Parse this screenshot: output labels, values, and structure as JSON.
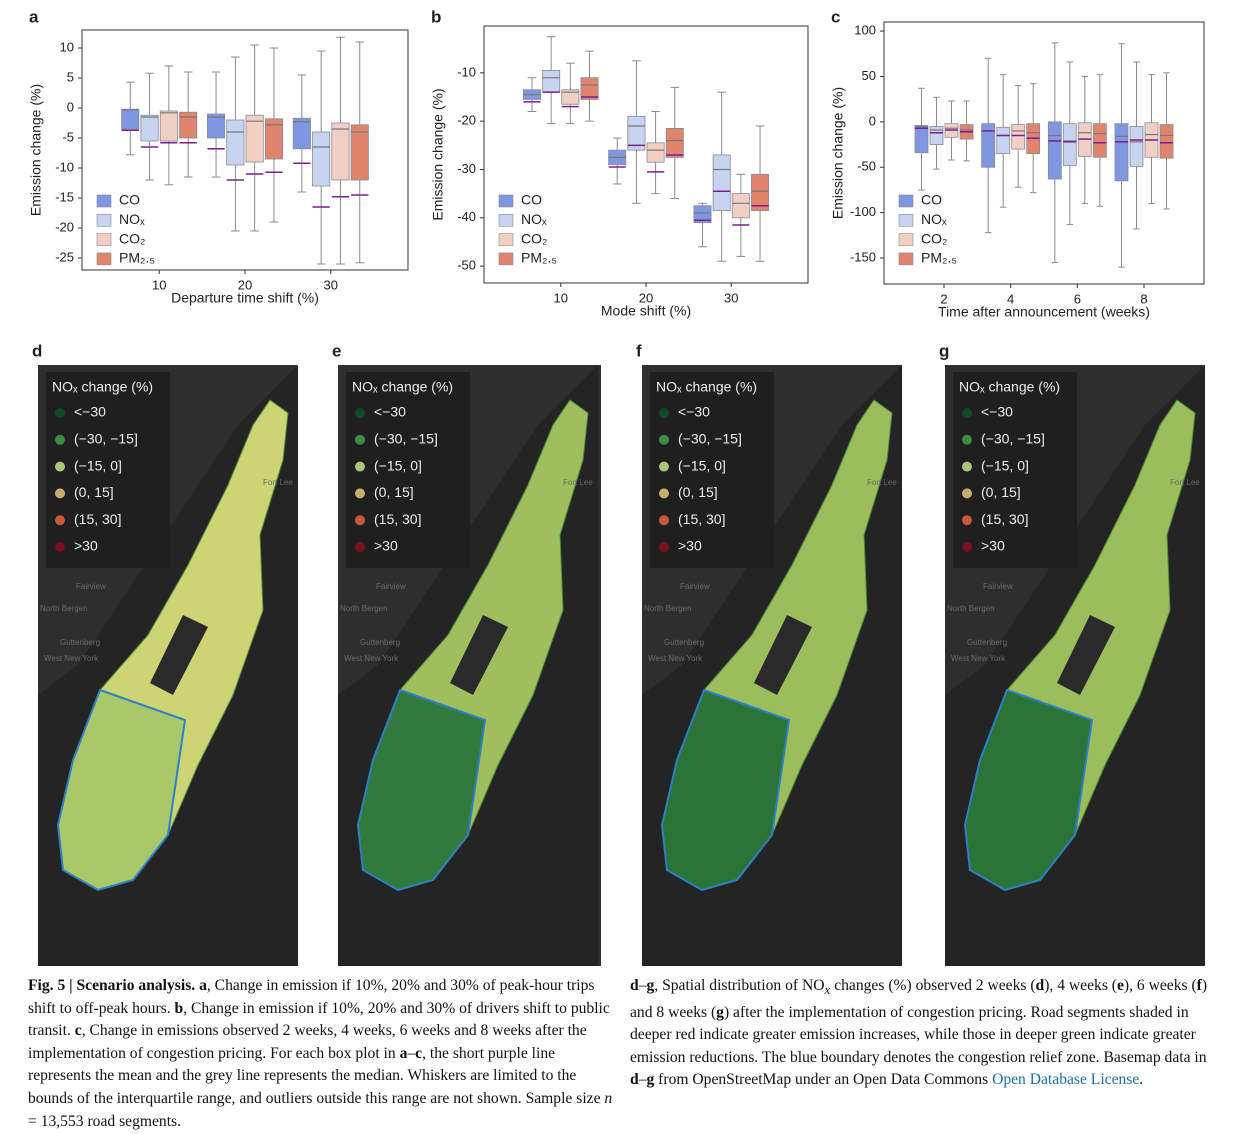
{
  "chart_data": [
    {
      "type": "box",
      "panel_label": "a",
      "ylabel": "Emission change (%)",
      "xlabel": "Departure time shift (%)",
      "categories": [
        "10",
        "20",
        "30"
      ],
      "ylim": [
        -27,
        13
      ],
      "yticks": [
        -25,
        -20,
        -15,
        -10,
        -5,
        0,
        5,
        10
      ],
      "series": [
        {
          "name": "CO",
          "color": "#7f97e0",
          "whisker_low": [
            -7.8,
            -11.5,
            -14
          ],
          "q1": [
            -3.5,
            -5,
            -6.8
          ],
          "median": [
            -0.3,
            -1.5,
            -2.3
          ],
          "q3": [
            -0.2,
            -1,
            -1.7
          ],
          "whisker_high": [
            4.3,
            6,
            5.5
          ],
          "mean": [
            -3.7,
            -6.8,
            -9.2
          ]
        },
        {
          "name": "NOₓ",
          "color": "#c6d4ef",
          "whisker_low": [
            -12,
            -20.5,
            -26
          ],
          "q1": [
            -5.5,
            -9.5,
            -13
          ],
          "median": [
            -1.5,
            -4,
            -6.5
          ],
          "q3": [
            -1.2,
            -2,
            -4
          ],
          "whisker_high": [
            5.8,
            8.5,
            9.5
          ],
          "mean": [
            -6.5,
            -12,
            -16.5
          ]
        },
        {
          "name": "CO₂",
          "color": "#f1d0c3",
          "whisker_low": [
            -12.8,
            -20.5,
            -26
          ],
          "q1": [
            -5.5,
            -9,
            -12
          ],
          "median": [
            -0.8,
            -2.2,
            -3.5
          ],
          "q3": [
            -0.5,
            -1.2,
            -2.5
          ],
          "whisker_high": [
            7,
            10.5,
            11.8
          ],
          "mean": [
            -5.8,
            -11,
            -14.8
          ]
        },
        {
          "name": "PM₂.₅",
          "color": "#e0846e",
          "whisker_low": [
            -11.5,
            -19,
            -25.8
          ],
          "q1": [
            -5,
            -8.5,
            -12
          ],
          "median": [
            -1.5,
            -2.8,
            -4
          ],
          "q3": [
            -0.7,
            -1.8,
            -2.8
          ],
          "whisker_high": [
            6,
            10,
            11
          ],
          "mean": [
            -5.8,
            -10.7,
            -14.5
          ]
        }
      ]
    },
    {
      "type": "box",
      "panel_label": "b",
      "ylabel": "Emission change (%)",
      "xlabel": "Mode shift (%)",
      "categories": [
        "10",
        "20",
        "30"
      ],
      "ylim": [
        -53.5,
        -0.3
      ],
      "yticks": [
        -50,
        -40,
        -30,
        -20,
        -10
      ],
      "series": [
        {
          "name": "CO",
          "color": "#7f97e0",
          "whisker_low": [
            -18,
            -33,
            -46
          ],
          "q1": [
            -15.5,
            -29,
            -41
          ],
          "median": [
            -14.5,
            -27.5,
            -39
          ],
          "q3": [
            -13.5,
            -26,
            -37.5
          ],
          "whisker_high": [
            -11,
            -23.5,
            -37
          ],
          "mean": [
            -16,
            -29.5,
            -40.5
          ]
        },
        {
          "name": "NOₓ",
          "color": "#c6d4ef",
          "whisker_low": [
            -20.5,
            -37,
            -49
          ],
          "q1": [
            -14,
            -26,
            -38.5
          ],
          "median": [
            -11,
            -21,
            -30
          ],
          "q3": [
            -9.5,
            -19,
            -27
          ],
          "whisker_high": [
            -2.5,
            -7.5,
            -14
          ],
          "mean": [
            -14,
            -25,
            -34.5
          ]
        },
        {
          "name": "CO₂",
          "color": "#f1d0c3",
          "whisker_low": [
            -20.5,
            -35,
            -48
          ],
          "q1": [
            -16.5,
            -28.5,
            -40
          ],
          "median": [
            -14,
            -26,
            -37
          ],
          "q3": [
            -13.5,
            -24.5,
            -35
          ],
          "whisker_high": [
            -8,
            -18,
            -31
          ],
          "mean": [
            -17,
            -30.5,
            -41.5
          ]
        },
        {
          "name": "PM₂.₅",
          "color": "#e0846e",
          "whisker_low": [
            -20,
            -36,
            -49
          ],
          "q1": [
            -15.5,
            -27.5,
            -38.5
          ],
          "median": [
            -12.5,
            -24,
            -34.5
          ],
          "q3": [
            -11,
            -21.5,
            -31
          ],
          "whisker_high": [
            -5.5,
            -13,
            -21
          ],
          "mean": [
            -15,
            -27,
            -37.5
          ]
        }
      ]
    },
    {
      "type": "box",
      "panel_label": "c",
      "ylabel": "Emission change (%)",
      "xlabel": "Time after announcement (weeks)",
      "categories": [
        "2",
        "4",
        "6",
        "8"
      ],
      "ylim": [
        -178.6,
        110
      ],
      "yticks": [
        -150,
        -100,
        -50,
        0,
        50,
        100
      ],
      "series": [
        {
          "name": "CO",
          "color": "#7f97e0",
          "whisker_low": [
            -75,
            -122,
            -155,
            -160
          ],
          "q1": [
            -34,
            -50,
            -63,
            -65
          ],
          "median": [
            -5,
            -10,
            -15,
            -16
          ],
          "q3": [
            -4,
            -2,
            0,
            -2
          ],
          "whisker_high": [
            37,
            70,
            87,
            86
          ],
          "mean": [
            -7,
            -10,
            -21,
            -22
          ]
        },
        {
          "name": "NOₓ",
          "color": "#c6d4ef",
          "whisker_low": [
            -52,
            -94,
            -113,
            -118
          ],
          "q1": [
            -25,
            -35,
            -48,
            -49
          ],
          "median": [
            -9,
            -15,
            -21,
            -22
          ],
          "q3": [
            -5,
            -6,
            -2,
            -5
          ],
          "whisker_high": [
            27,
            52,
            66,
            66
          ],
          "mean": [
            -12,
            -15,
            -22,
            -20
          ]
        },
        {
          "name": "CO₂",
          "color": "#f1d0c3",
          "whisker_low": [
            -42,
            -72,
            -90,
            -90
          ],
          "q1": [
            -17,
            -30,
            -38,
            -39
          ],
          "median": [
            -7,
            -10,
            -12,
            -14
          ],
          "q3": [
            -2,
            -3,
            -1,
            -1
          ],
          "whisker_high": [
            23,
            40,
            50,
            52
          ],
          "mean": [
            -9,
            -15,
            -19,
            -20
          ]
        },
        {
          "name": "PM₂.₅",
          "color": "#e0846e",
          "whisker_low": [
            -43,
            -78,
            -93,
            -96
          ],
          "q1": [
            -19,
            -35,
            -39,
            -40
          ],
          "median": [
            -9,
            -12,
            -13,
            -15
          ],
          "q3": [
            -3,
            -2,
            -2,
            -3
          ],
          "whisker_high": [
            23,
            42,
            52,
            54
          ],
          "mean": [
            -11,
            -18,
            -23,
            -23
          ]
        }
      ]
    }
  ],
  "maps": {
    "panels": [
      {
        "label": "d"
      },
      {
        "label": "e"
      },
      {
        "label": "f"
      },
      {
        "label": "g"
      }
    ],
    "legend": {
      "title": "NOₓ change (%)",
      "items": [
        {
          "label": "<−30",
          "color": "#0f4a25"
        },
        {
          "label": "(−30, −15]",
          "color": "#3f8a43"
        },
        {
          "label": "(−15, 0]",
          "color": "#a8c57a"
        },
        {
          "label": "(0, 15]",
          "color": "#c6ad6e"
        },
        {
          "label": "(15, 30]",
          "color": "#c9593a"
        },
        {
          "label": ">30",
          "color": "#7a0f1e"
        }
      ]
    },
    "basemap_labels": [
      "Fort Lee",
      "Fairview",
      "North Bergen",
      "Guttenberg",
      "West New York"
    ]
  },
  "caption": {
    "left": [
      {
        "text": "Fig. 5 | Scenario analysis. a",
        "bold": true
      },
      {
        "text": ", Change in emission if 10%, 20% and 30% of peak-hour trips shift to off-peak hours. "
      },
      {
        "text": "b",
        "bold": true
      },
      {
        "text": ", Change in emission if 10%, 20% and 30% of drivers shift to public transit. "
      },
      {
        "text": "c",
        "bold": true
      },
      {
        "text": ", Change in emissions observed 2 weeks, 4 weeks, 6 weeks and 8 weeks after the implementation of congestion pricing. For each box plot in "
      },
      {
        "text": "a",
        "bold": true
      },
      {
        "text": "–"
      },
      {
        "text": "c",
        "bold": true
      },
      {
        "text": ", the short purple line represents the mean and the grey line represents the median. Whiskers are limited to the bounds of the interquartile range, and outliers outside this range are not shown. Sample size "
      },
      {
        "text": "n",
        "italic": true
      },
      {
        "text": " = 13,553 road segments."
      }
    ],
    "right": [
      {
        "text": "d",
        "bold": true
      },
      {
        "text": "–"
      },
      {
        "text": "g",
        "bold": true
      },
      {
        "text": ", Spatial distribution of NO"
      },
      {
        "text": "x",
        "sub": true,
        "italic": true
      },
      {
        "text": " changes (%) observed 2 weeks ("
      },
      {
        "text": "d",
        "bold": true
      },
      {
        "text": "), 4 weeks ("
      },
      {
        "text": "e",
        "bold": true
      },
      {
        "text": "), 6 weeks ("
      },
      {
        "text": "f",
        "bold": true
      },
      {
        "text": ") and 8 weeks ("
      },
      {
        "text": "g",
        "bold": true
      },
      {
        "text": ") after the implementation of congestion pricing. Road segments shaded in deeper red indicate greater emission increases, while those in deeper green indicate greater emission reductions. The blue boundary denotes the congestion relief zone. Basemap data in "
      },
      {
        "text": "d",
        "bold": true
      },
      {
        "text": "–"
      },
      {
        "text": "g",
        "bold": true
      },
      {
        "text": " from OpenStreetMap under an Open Data Commons "
      },
      {
        "text": "Open Database License",
        "link": true
      },
      {
        "text": "."
      }
    ]
  }
}
